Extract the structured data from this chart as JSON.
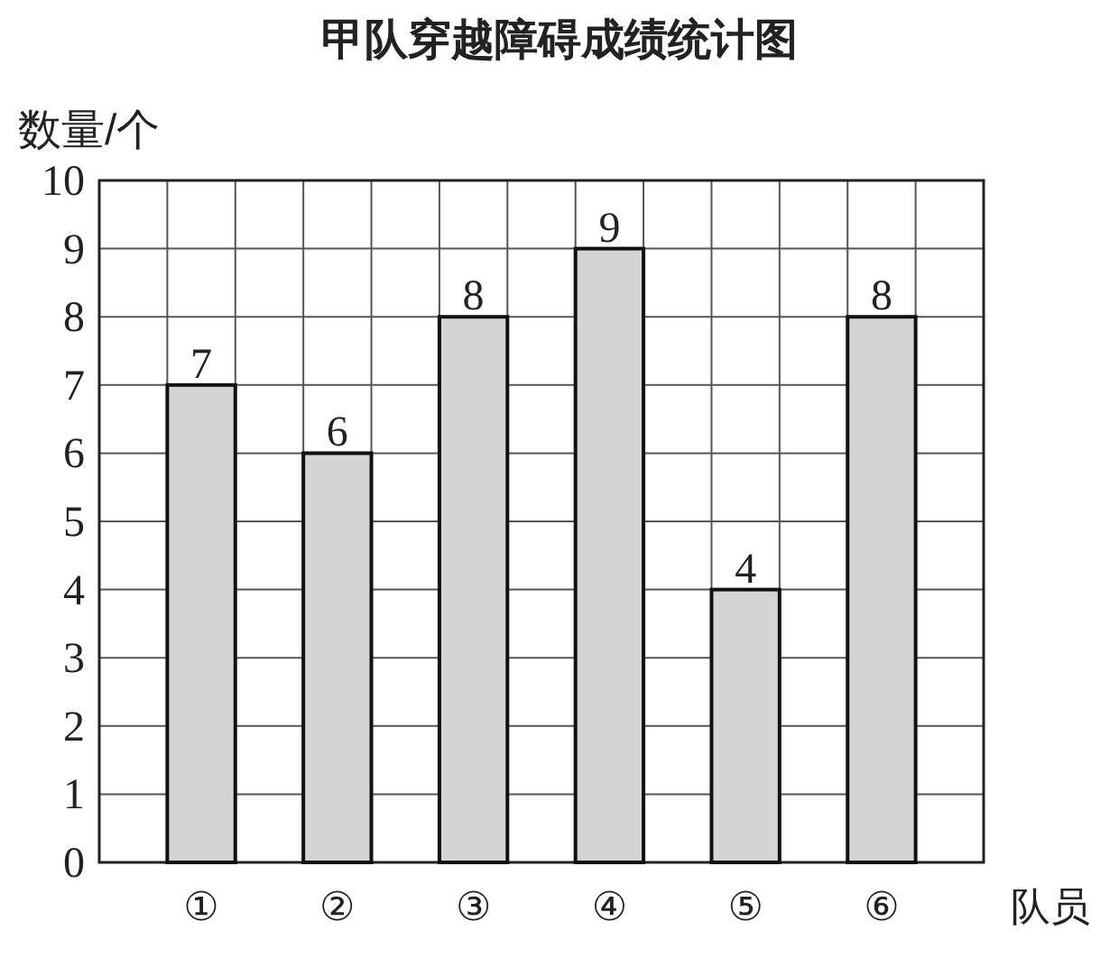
{
  "chart_data": {
    "type": "bar",
    "title": "甲队穿越障碍成绩统计图",
    "ylabel": "数量/个",
    "xlabel": "队员",
    "categories": [
      "①",
      "②",
      "③",
      "④",
      "⑤",
      "⑥"
    ],
    "values": [
      7,
      6,
      8,
      9,
      4,
      8
    ],
    "color": "#d4d4d4",
    "ylim": [
      0,
      10
    ],
    "yticks": [
      0,
      1,
      2,
      3,
      4,
      5,
      6,
      7,
      8,
      9,
      10
    ],
    "grid": true,
    "data_labels": true
  }
}
